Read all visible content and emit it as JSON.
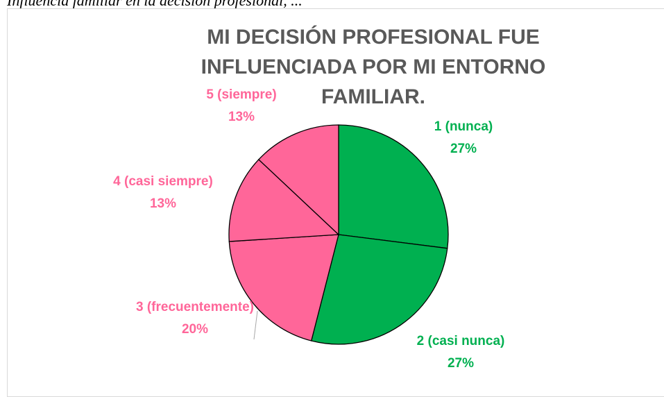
{
  "caption": "Influencia familiar en la decisión profesional, ...",
  "chart_data": {
    "type": "pie",
    "title": "MI DECISIÓN PROFESIONAL FUE INFLUENCIADA POR MI ENTORNO FAMILIAR.",
    "categories": [
      "1 (nunca)",
      "2 (casi nunca)",
      "3 (frecuentemente)",
      "4 (casi siempre)",
      "5 (siempre)"
    ],
    "values": [
      27,
      27,
      20,
      13,
      13
    ],
    "value_labels": [
      "27%",
      "27%",
      "20%",
      "13%",
      "13%"
    ],
    "colors": [
      "#00b050",
      "#00b050",
      "#ff6699",
      "#ff6699",
      "#ff6699"
    ]
  }
}
